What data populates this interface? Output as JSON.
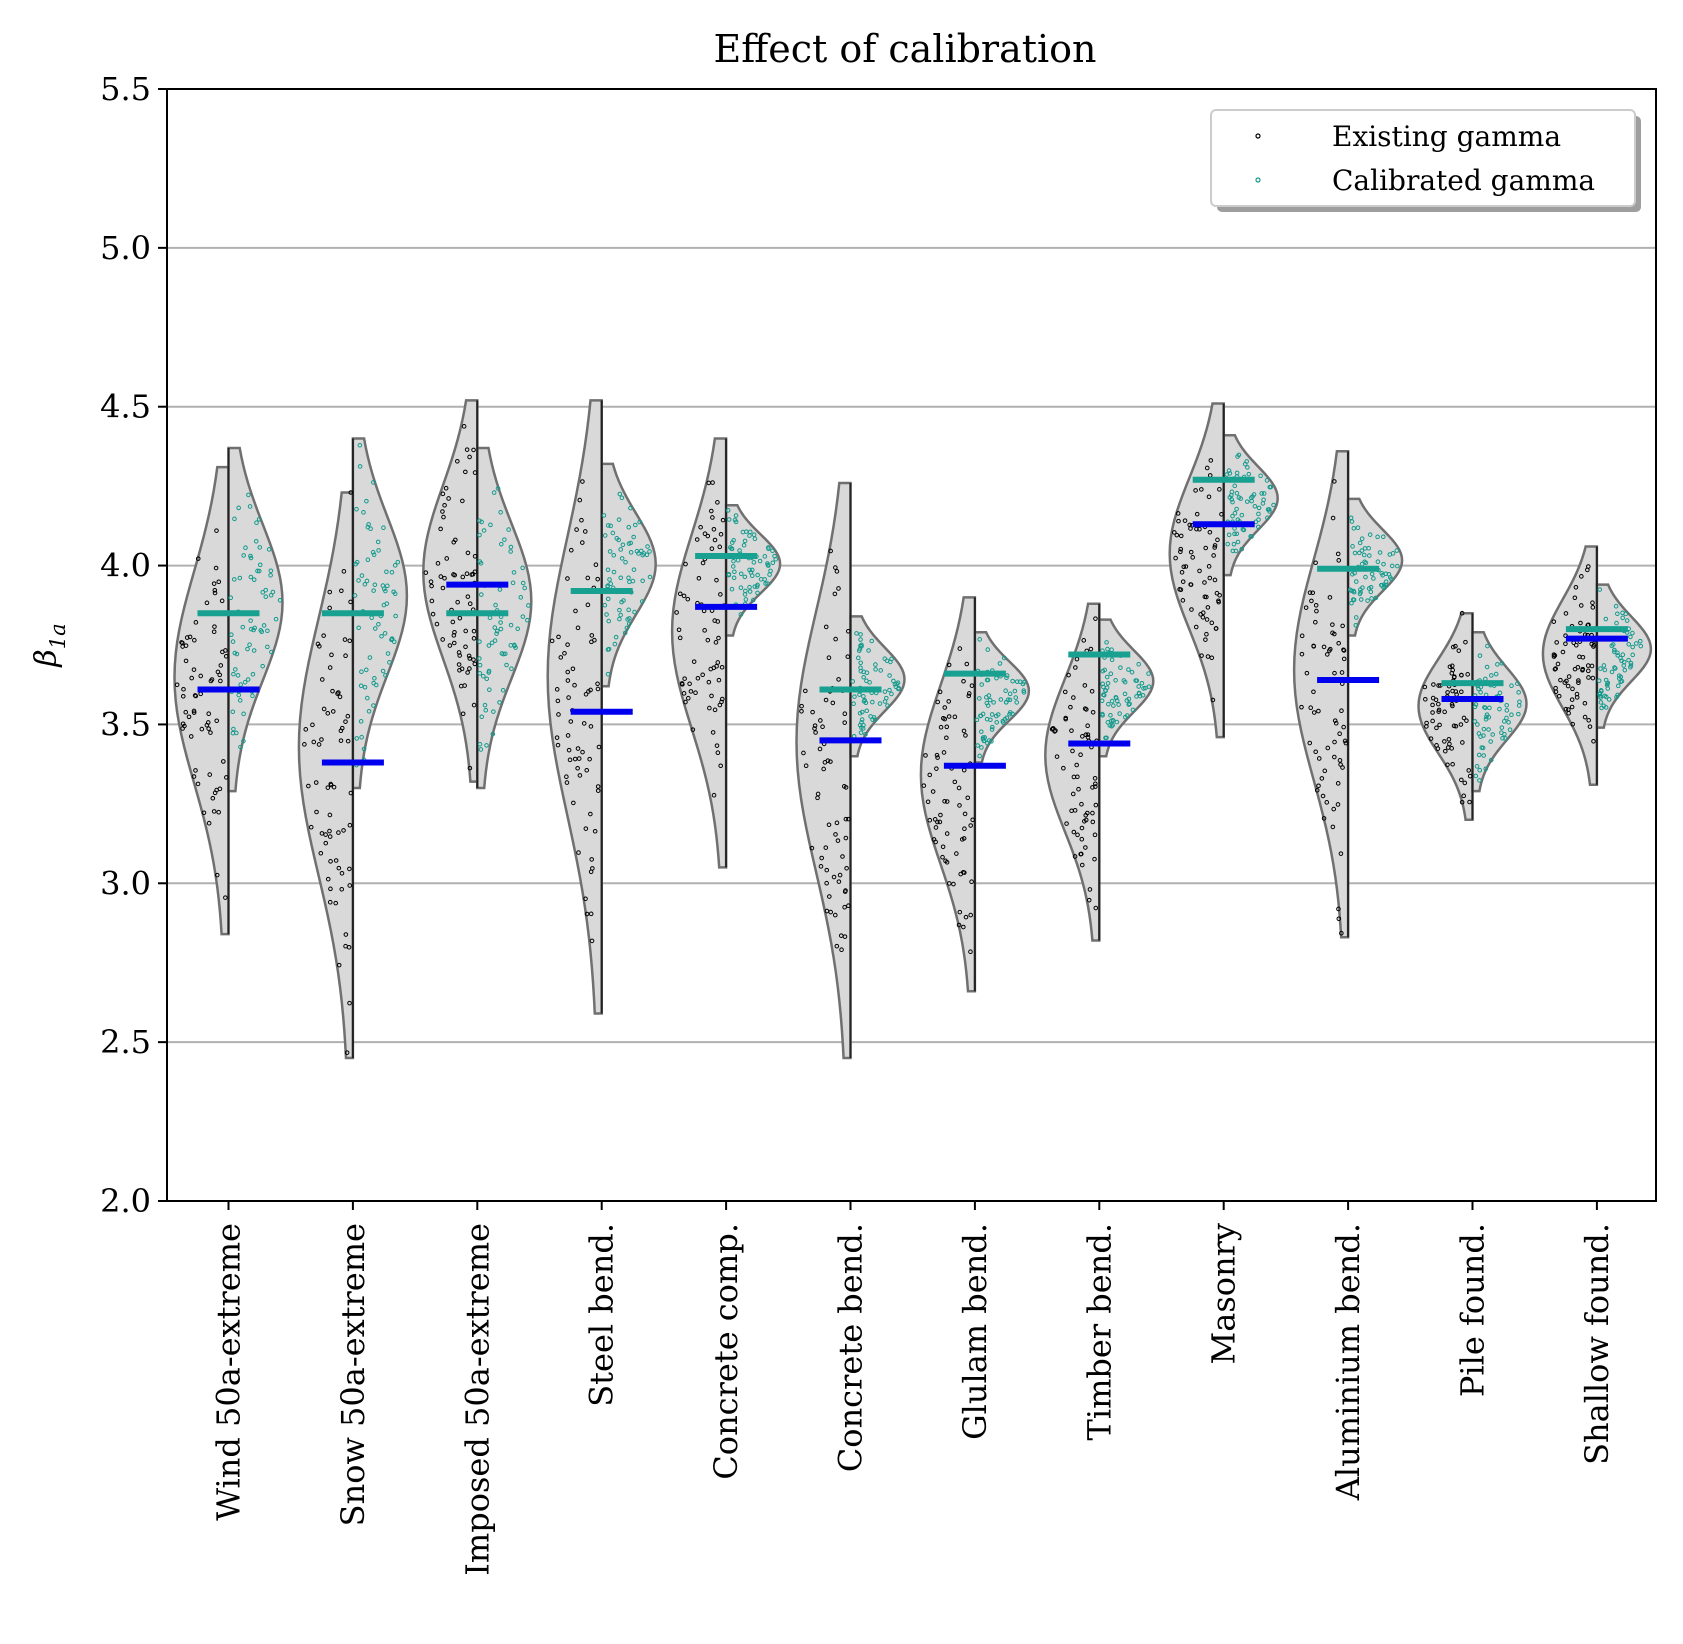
{
  "chart_data": {
    "type": "violin",
    "title": "Effect of calibration",
    "ylabel": "β",
    "ylabel_sub": "1a",
    "ylim": [
      2.0,
      5.5
    ],
    "yticks": [
      "2.0",
      "2.5",
      "3.0",
      "3.5",
      "4.0",
      "4.5",
      "5.0",
      "5.5"
    ],
    "ytick_values": [
      2.0,
      2.5,
      3.0,
      3.5,
      4.0,
      4.5,
      5.0,
      5.5
    ],
    "grid": "horizontal",
    "legend_position": "top-right",
    "legend": [
      "Existing gamma",
      "Calibrated gamma"
    ],
    "colors": {
      "violin_fill": "#d9d9d9",
      "violin_edge": "#707070",
      "existing_points": "#000000",
      "calibrated_points": "#129a8c",
      "calibrated_mean": "#18a090",
      "existing_mean": "#0000ee",
      "grid": "#b0b0b0"
    },
    "categories": [
      "Wind 50a-extreme",
      "Snow 50a-extreme",
      "Imposed 50a-extreme",
      "Steel bend.",
      "Concrete comp.",
      "Concrete bend.",
      "Glulam bend.",
      "Timber bend.",
      "Masonry",
      "Aluminium bend.",
      "Pile found.",
      "Shallow found."
    ],
    "series": [
      {
        "name": "Existing gamma",
        "ranges": [
          [
            2.84,
            4.31
          ],
          [
            2.45,
            4.23
          ],
          [
            3.32,
            4.52
          ],
          [
            2.59,
            4.52
          ],
          [
            3.05,
            4.4
          ],
          [
            2.45,
            4.26
          ],
          [
            2.66,
            3.9
          ],
          [
            2.82,
            3.88
          ],
          [
            3.46,
            4.51
          ],
          [
            2.83,
            4.36
          ],
          [
            3.2,
            3.85
          ],
          [
            3.31,
            4.06
          ]
        ],
        "means": [
          3.61,
          3.38,
          3.94,
          3.54,
          3.87,
          3.45,
          3.37,
          3.44,
          4.13,
          3.64,
          3.58,
          3.77
        ]
      },
      {
        "name": "Calibrated gamma",
        "ranges": [
          [
            3.29,
            4.37
          ],
          [
            3.3,
            4.4
          ],
          [
            3.3,
            4.37
          ],
          [
            3.62,
            4.32
          ],
          [
            3.78,
            4.19
          ],
          [
            3.4,
            3.84
          ],
          [
            3.38,
            3.79
          ],
          [
            3.4,
            3.83
          ],
          [
            3.97,
            4.41
          ],
          [
            3.78,
            4.21
          ],
          [
            3.29,
            3.79
          ],
          [
            3.49,
            3.94
          ]
        ],
        "means": [
          3.85,
          3.85,
          3.85,
          3.92,
          4.03,
          3.61,
          3.66,
          3.72,
          4.27,
          3.99,
          3.63,
          3.8
        ]
      }
    ]
  }
}
